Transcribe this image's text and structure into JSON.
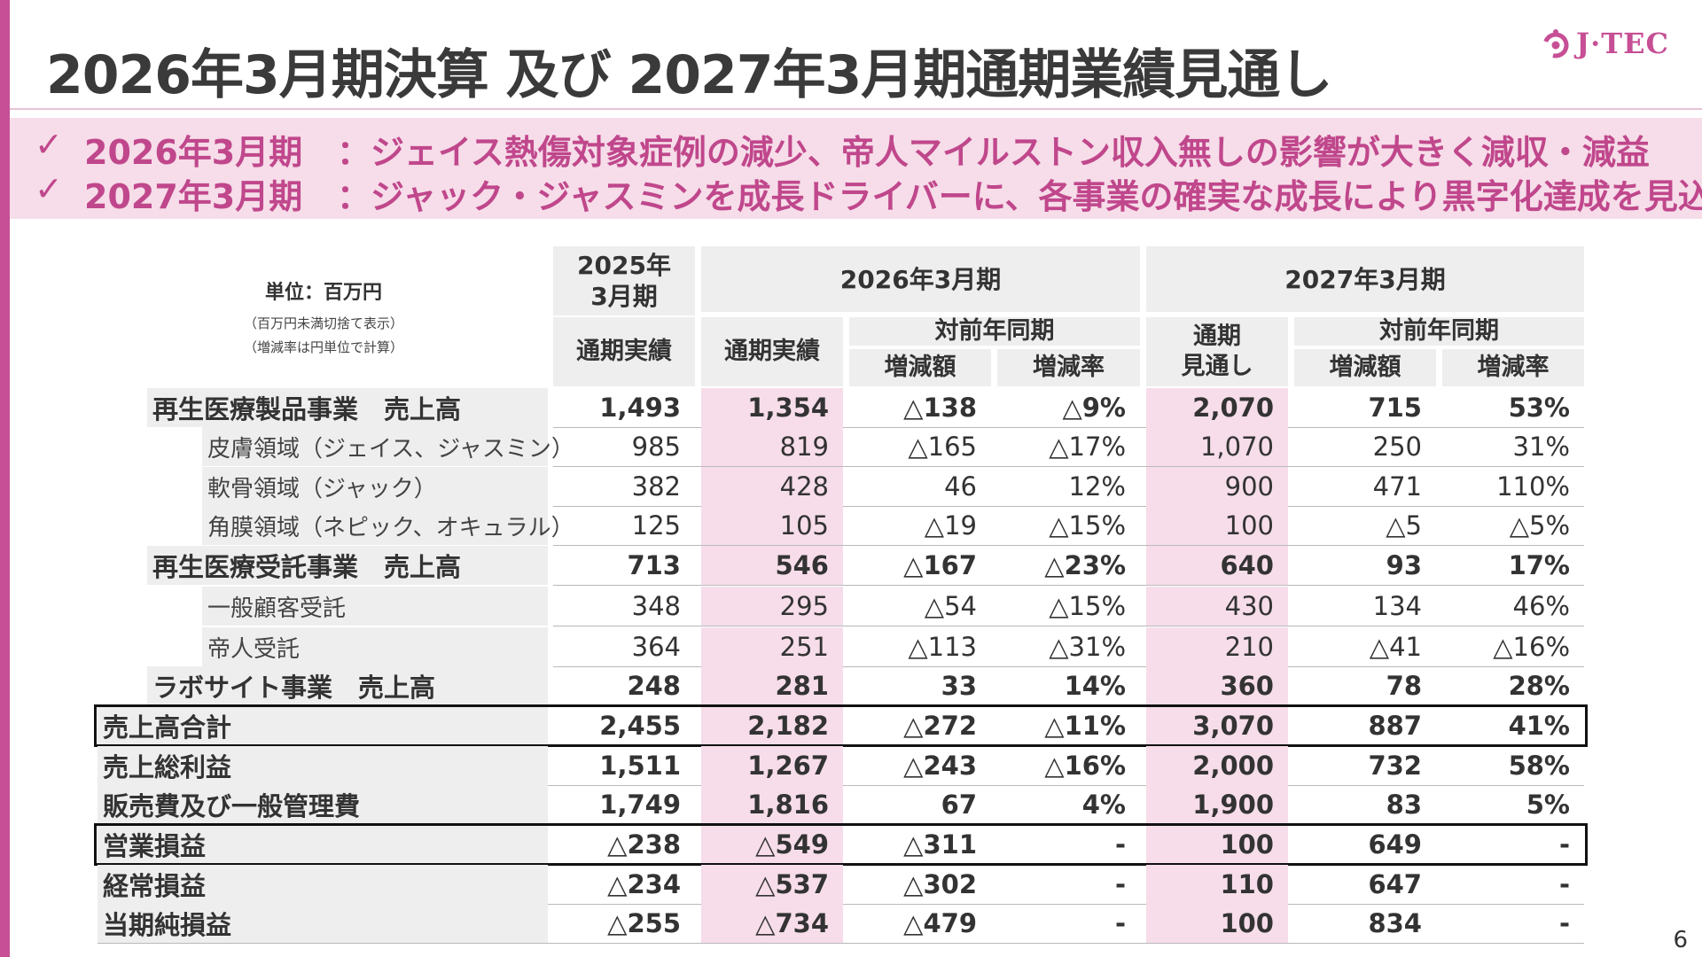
{
  "title": "2026年3月期決算 及び 2027年3月期通期業績見通し",
  "brand": {
    "name": "J·TEC",
    "color": "#c64f95"
  },
  "banner": {
    "check": "✓",
    "lines": [
      {
        "label": "2026年3月期",
        "colon": "：",
        "text": "ジェイス熱傷対象症例の減少、帝人マイルストン収入無しの影響が大きく減収・減益"
      },
      {
        "label": "2027年3月期",
        "colon": "：",
        "text": "ジャック・ジャスミンを成長ドライバーに、各事業の確実な成長により黒字化達成を見込む"
      }
    ]
  },
  "unit_note": {
    "unit": "単位：百万円",
    "note1": "（百万円未満切捨て表示）",
    "note2": "（増減率は円単位で計算）"
  },
  "headers": {
    "fy2025": "2025年\n3月期",
    "fy2026": "2026年3月期",
    "fy2027": "2027年3月期",
    "actual": "通期実績",
    "forecast": "通期\n見通し",
    "yoy": "対前年同期",
    "change_amt": "増減額",
    "change_rate": "増減率"
  },
  "rows": [
    {
      "label": "再生医療製品事業　売上高",
      "level": 1,
      "bold": true,
      "values": [
        "1,493",
        "1,354",
        "△138",
        "△9%",
        "2,070",
        "715",
        "53%"
      ]
    },
    {
      "label": "皮膚領域（ジェイス、ジャスミン）",
      "level": 2,
      "bold": false,
      "values": [
        "985",
        "819",
        "△165",
        "△17%",
        "1,070",
        "250",
        "31%"
      ]
    },
    {
      "label": "軟骨領域（ジャック）",
      "level": 2,
      "bold": false,
      "values": [
        "382",
        "428",
        "46",
        "12%",
        "900",
        "471",
        "110%"
      ]
    },
    {
      "label": "角膜領域（ネピック、オキュラル）",
      "level": 2,
      "bold": false,
      "values": [
        "125",
        "105",
        "△19",
        "△15%",
        "100",
        "△5",
        "△5%"
      ]
    },
    {
      "label": "再生医療受託事業　売上高",
      "level": 1,
      "bold": true,
      "values": [
        "713",
        "546",
        "△167",
        "△23%",
        "640",
        "93",
        "17%"
      ]
    },
    {
      "label": "一般顧客受託",
      "level": 2,
      "bold": false,
      "values": [
        "348",
        "295",
        "△54",
        "△15%",
        "430",
        "134",
        "46%"
      ]
    },
    {
      "label": "帝人受託",
      "level": 2,
      "bold": false,
      "values": [
        "364",
        "251",
        "△113",
        "△31%",
        "210",
        "△41",
        "△16%"
      ]
    },
    {
      "label": "ラボサイト事業　売上高",
      "level": 1,
      "bold": true,
      "values": [
        "248",
        "281",
        "33",
        "14%",
        "360",
        "78",
        "28%"
      ]
    },
    {
      "label": "売上高合計",
      "level": 0,
      "bold": true,
      "boxed": true,
      "values": [
        "2,455",
        "2,182",
        "△272",
        "△11%",
        "3,070",
        "887",
        "41%"
      ]
    },
    {
      "label": "売上総利益",
      "level": 0,
      "bold": true,
      "values": [
        "1,511",
        "1,267",
        "△243",
        "△16%",
        "2,000",
        "732",
        "58%"
      ]
    },
    {
      "label": "販売費及び一般管理費",
      "level": 0,
      "bold": true,
      "values": [
        "1,749",
        "1,816",
        "67",
        "4%",
        "1,900",
        "83",
        "5%"
      ]
    },
    {
      "label": "営業損益",
      "level": 0,
      "bold": true,
      "boxed": true,
      "values": [
        "△238",
        "△549",
        "△311",
        "-",
        "100",
        "649",
        "-"
      ]
    },
    {
      "label": "経常損益",
      "level": 0,
      "bold": true,
      "values": [
        "△234",
        "△537",
        "△302",
        "-",
        "110",
        "647",
        "-"
      ]
    },
    {
      "label": "当期純損益",
      "level": 0,
      "bold": true,
      "values": [
        "△255",
        "△734",
        "△479",
        "-",
        "100",
        "834",
        "-"
      ]
    }
  ],
  "page_number": "6",
  "colors": {
    "accent": "#c64f95",
    "banner_bg": "#f6dde9",
    "header_bg": "#eeeeee",
    "highlight": "#f6dde9"
  }
}
